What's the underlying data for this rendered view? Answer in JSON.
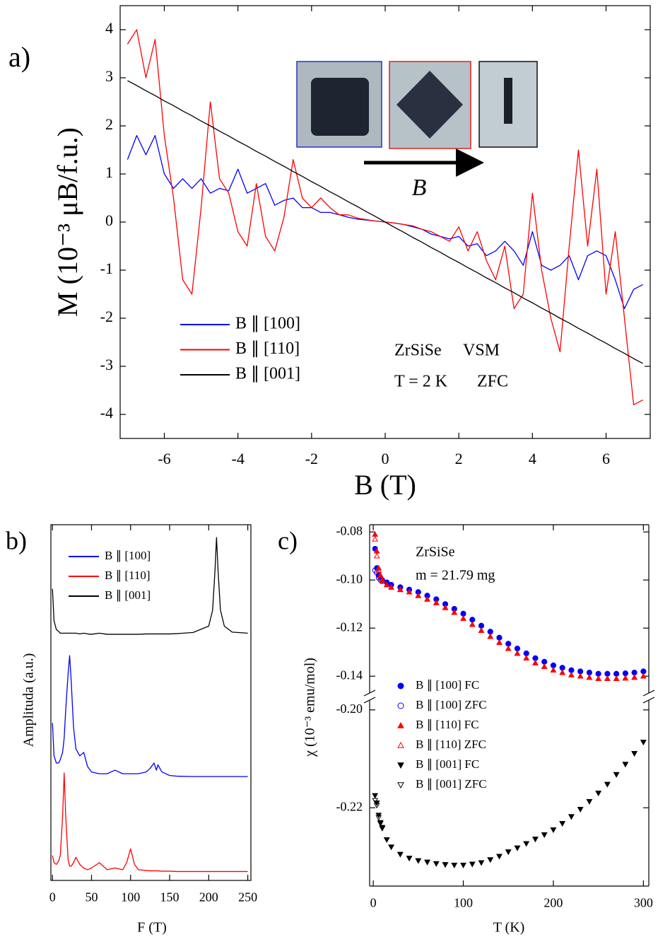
{
  "chart_data": [
    {
      "type": "line",
      "panel_label": "a)",
      "x_label": "B (T)",
      "y_label": "M (10⁻³ μB/f.u.)",
      "xlim": [
        -7.2,
        7.2
      ],
      "ylim": [
        -4.5,
        4.5
      ],
      "xticks": [
        -6,
        -4,
        -2,
        0,
        2,
        4,
        6
      ],
      "yticks": [
        -4,
        -3,
        -2,
        -1,
        0,
        1,
        2,
        3,
        4
      ],
      "annotations": [
        "ZrSiSe",
        "VSM",
        "T = 2 K",
        "ZFC",
        "B"
      ],
      "x": [
        -7,
        -6.75,
        -6.5,
        -6.25,
        -6,
        -5.75,
        -5.5,
        -5.25,
        -5,
        -4.75,
        -4.5,
        -4.25,
        -4,
        -3.75,
        -3.5,
        -3.25,
        -3,
        -2.75,
        -2.5,
        -2.25,
        -2,
        -1.75,
        -1.5,
        -1.25,
        -1,
        -0.75,
        -0.5,
        -0.25,
        0,
        0.25,
        0.5,
        0.75,
        1,
        1.25,
        1.5,
        1.75,
        2,
        2.25,
        2.5,
        2.75,
        3,
        3.25,
        3.5,
        3.75,
        4,
        4.25,
        4.5,
        4.75,
        5,
        5.25,
        5.5,
        5.75,
        6,
        6.25,
        6.5,
        6.75,
        7
      ],
      "series": [
        {
          "name": "B ∥ [100]",
          "color": "#0000ff",
          "values": [
            1.3,
            1.8,
            1.4,
            1.8,
            1.0,
            0.7,
            0.9,
            0.7,
            0.9,
            0.6,
            0.7,
            0.65,
            1.1,
            0.6,
            0.7,
            0.8,
            0.35,
            0.45,
            0.5,
            0.3,
            0.3,
            0.2,
            0.2,
            0.15,
            0.1,
            0.06,
            0.04,
            0.02,
            0,
            -0.02,
            -0.05,
            -0.1,
            -0.15,
            -0.25,
            -0.3,
            -0.35,
            -0.3,
            -0.5,
            -0.45,
            -0.7,
            -0.6,
            -0.4,
            -0.6,
            -0.9,
            -0.2,
            -0.9,
            -1.0,
            -0.9,
            -0.7,
            -1.2,
            -0.7,
            -0.6,
            -0.7,
            -1.2,
            -1.8,
            -1.4,
            -1.3
          ]
        },
        {
          "name": "B ∥ [110]",
          "color": "#ff0000",
          "values": [
            3.7,
            4.0,
            3.0,
            3.8,
            1.8,
            0.5,
            -1.2,
            -1.5,
            0.3,
            2.5,
            0.9,
            0.6,
            -0.2,
            -0.5,
            0.8,
            -0.3,
            -0.6,
            0.1,
            1.3,
            0.5,
            0.3,
            0.5,
            0.3,
            0.15,
            0.15,
            0.08,
            0.05,
            0.02,
            0,
            -0.02,
            -0.05,
            -0.08,
            -0.15,
            -0.2,
            -0.3,
            -0.4,
            -0.1,
            -0.6,
            -0.2,
            -0.8,
            -1.2,
            -0.5,
            -1.8,
            -1.5,
            0.6,
            -1.0,
            -2.0,
            -2.7,
            -0.5,
            1.5,
            -0.5,
            1.1,
            -1.5,
            -0.2,
            -2.0,
            -3.8,
            -3.7
          ]
        },
        {
          "name": "B ∥ [001]",
          "color": "#000000",
          "values": [
            2.94,
            2.84,
            2.73,
            2.63,
            2.52,
            2.42,
            2.31,
            2.21,
            2.1,
            2.0,
            1.89,
            1.79,
            1.68,
            1.58,
            1.47,
            1.37,
            1.26,
            1.16,
            1.05,
            0.95,
            0.84,
            0.74,
            0.63,
            0.53,
            0.42,
            0.32,
            0.21,
            0.11,
            0,
            -0.11,
            -0.21,
            -0.32,
            -0.42,
            -0.53,
            -0.63,
            -0.74,
            -0.84,
            -0.95,
            -1.05,
            -1.16,
            -1.26,
            -1.37,
            -1.47,
            -1.58,
            -1.68,
            -1.79,
            -1.89,
            -2.0,
            -2.1,
            -2.21,
            -2.31,
            -2.42,
            -2.52,
            -2.63,
            -2.73,
            -2.84,
            -2.94
          ]
        }
      ]
    },
    {
      "type": "line",
      "panel_label": "b)",
      "x_label": "F (T)",
      "y_label": "Amplituda (a.u.)",
      "xlim": [
        -2,
        254
      ],
      "ylim": [
        0,
        10
      ],
      "xticks": [
        0,
        50,
        100,
        150,
        200,
        250
      ],
      "x": [
        0,
        2,
        5,
        8,
        10,
        13,
        15,
        17,
        20,
        22,
        24,
        27,
        30,
        35,
        40,
        45,
        50,
        60,
        70,
        80,
        90,
        95,
        100,
        105,
        110,
        120,
        125,
        130,
        133,
        135,
        140,
        150,
        160,
        180,
        200,
        205,
        208,
        210,
        212,
        215,
        220,
        230,
        250
      ],
      "series": [
        {
          "name": "B ∥ [100]",
          "color": "#0000ff",
          "values": [
            4.43,
            3.5,
            3.3,
            3.3,
            3.4,
            3.6,
            4.0,
            4.8,
            5.8,
            6.32,
            5.6,
            4.3,
            3.7,
            3.5,
            3.6,
            3.2,
            3.05,
            3.0,
            3.0,
            3.1,
            3.0,
            3.0,
            3.0,
            3.0,
            3.0,
            3.05,
            3.15,
            3.3,
            3.1,
            3.25,
            3.05,
            2.95,
            2.93,
            2.92,
            2.92,
            2.92,
            2.92,
            2.92,
            2.92,
            2.92,
            2.92,
            2.92,
            2.92
          ]
        },
        {
          "name": "B ∥ [110]",
          "color": "#ff0000",
          "values": [
            0.7,
            0.5,
            0.45,
            0.55,
            0.7,
            1.8,
            3.02,
            1.8,
            0.6,
            0.4,
            0.4,
            0.5,
            0.65,
            0.45,
            0.35,
            0.3,
            0.35,
            0.5,
            0.3,
            0.35,
            0.3,
            0.5,
            0.89,
            0.45,
            0.3,
            0.28,
            0.27,
            0.27,
            0.27,
            0.27,
            0.26,
            0.26,
            0.25,
            0.25,
            0.25,
            0.25,
            0.25,
            0.25,
            0.25,
            0.25,
            0.25,
            0.25,
            0.25
          ]
        },
        {
          "name": "B ∥ [001]",
          "color": "#000000",
          "values": [
            8.2,
            7.3,
            7.05,
            7.0,
            6.95,
            6.95,
            6.95,
            6.95,
            6.95,
            6.95,
            6.95,
            6.95,
            6.95,
            6.93,
            6.95,
            6.93,
            6.92,
            6.95,
            6.92,
            6.92,
            6.92,
            6.92,
            6.92,
            6.92,
            6.92,
            6.93,
            6.93,
            6.93,
            6.93,
            6.93,
            6.93,
            6.93,
            6.94,
            6.97,
            7.15,
            7.6,
            8.7,
            9.64,
            8.7,
            7.6,
            7.15,
            6.98,
            6.95
          ]
        }
      ]
    },
    {
      "type": "scatter",
      "panel_label": "c)",
      "x_label": "T (K)",
      "y_label": "χ (10⁻³ emu/mol)",
      "xlim": [
        -4,
        306
      ],
      "ylim": [
        -0.147,
        -0.077
      ],
      "y2lim": [
        -0.236,
        -0.198
      ],
      "xticks": [
        0,
        100,
        200,
        300
      ],
      "yticks": [
        {
          "value": -0.08,
          "label": "-0.08"
        },
        {
          "value": -0.1,
          "label": "-0.10"
        },
        {
          "value": -0.12,
          "label": "-0.12"
        },
        {
          "value": -0.14,
          "label": "-0.14"
        }
      ],
      "y2ticks": [
        {
          "value": -0.2,
          "label": "-0.20"
        },
        {
          "value": -0.22,
          "label": "-0.22"
        }
      ],
      "annotations": [
        "ZrSiSe",
        "m = 21.79 mg"
      ],
      "x": [
        2,
        4,
        6,
        8,
        10,
        15,
        20,
        30,
        40,
        50,
        60,
        70,
        80,
        90,
        100,
        110,
        120,
        130,
        140,
        150,
        160,
        170,
        180,
        190,
        200,
        210,
        220,
        230,
        240,
        250,
        260,
        270,
        280,
        290,
        300
      ],
      "series": [
        {
          "name": "B ∥ [100] FC",
          "color": "#0000ff",
          "marker": "circle",
          "filled": true,
          "values": [
            -0.087,
            -0.095,
            -0.098,
            -0.099,
            -0.1,
            -0.101,
            -0.102,
            -0.103,
            -0.104,
            -0.105,
            -0.1065,
            -0.108,
            -0.11,
            -0.112,
            -0.114,
            -0.1165,
            -0.119,
            -0.1215,
            -0.124,
            -0.1265,
            -0.1285,
            -0.1305,
            -0.1325,
            -0.134,
            -0.1355,
            -0.1365,
            -0.1375,
            -0.138,
            -0.1385,
            -0.139,
            -0.139,
            -0.139,
            -0.1388,
            -0.1385,
            -0.138
          ]
        },
        {
          "name": "B ∥ [100] ZFC",
          "color": "#0000ff",
          "marker": "circle",
          "filled": false,
          "values": [
            -0.096,
            -0.097,
            -0.099,
            -0.1,
            -0.1005,
            -0.101,
            -0.102,
            -0.103,
            -0.104,
            -0.105,
            -0.1065,
            -0.108,
            -0.11,
            -0.112,
            -0.114,
            -0.1165,
            -0.119,
            -0.1215,
            -0.124,
            -0.1265,
            -0.1285,
            -0.1305,
            -0.1325,
            -0.134,
            -0.1355,
            -0.1365,
            -0.1375,
            -0.138,
            -0.1385,
            -0.139,
            -0.139,
            -0.139,
            -0.1388,
            -0.1385,
            -0.138
          ]
        },
        {
          "name": "B ∥ [110] FC",
          "color": "#ff0000",
          "marker": "triangle-up",
          "filled": true,
          "values": [
            -0.081,
            -0.088,
            -0.095,
            -0.098,
            -0.1,
            -0.102,
            -0.103,
            -0.104,
            -0.105,
            -0.1065,
            -0.108,
            -0.1095,
            -0.1115,
            -0.1135,
            -0.116,
            -0.1185,
            -0.121,
            -0.1235,
            -0.126,
            -0.1285,
            -0.1305,
            -0.1325,
            -0.1345,
            -0.136,
            -0.1375,
            -0.1385,
            -0.1395,
            -0.14,
            -0.1405,
            -0.141,
            -0.141,
            -0.141,
            -0.1408,
            -0.1405,
            -0.14
          ]
        },
        {
          "name": "B ∥ [110] ZFC",
          "color": "#ff0000",
          "marker": "triangle-up",
          "filled": false,
          "values": [
            -0.083,
            -0.09,
            -0.096,
            -0.099,
            -0.1005,
            -0.102,
            -0.103,
            -0.104,
            -0.105,
            -0.1065,
            -0.108,
            -0.1095,
            -0.1115,
            -0.1135,
            -0.116,
            -0.1185,
            -0.121,
            -0.1235,
            -0.126,
            -0.1285,
            -0.1305,
            -0.1325,
            -0.1345,
            -0.136,
            -0.1375,
            -0.1385,
            -0.1395,
            -0.14,
            -0.1405,
            -0.141,
            -0.141,
            -0.141,
            -0.1408,
            -0.1405,
            -0.14
          ]
        },
        {
          "name": "B ∥ [001] FC",
          "color": "#000000",
          "marker": "triangle-down",
          "filled": true,
          "axis": "y2",
          "values": [
            -0.2175,
            -0.219,
            -0.2215,
            -0.223,
            -0.224,
            -0.2265,
            -0.228,
            -0.2295,
            -0.2303,
            -0.2308,
            -0.2311,
            -0.2314,
            -0.2316,
            -0.2317,
            -0.2317,
            -0.2315,
            -0.2312,
            -0.2306,
            -0.2299,
            -0.229,
            -0.2282,
            -0.2273,
            -0.2264,
            -0.2255,
            -0.2245,
            -0.2232,
            -0.2218,
            -0.2203,
            -0.2187,
            -0.217,
            -0.2152,
            -0.2132,
            -0.2111,
            -0.2089,
            -0.2066
          ]
        },
        {
          "name": "B ∥ [001] ZFC",
          "color": "#000000",
          "marker": "triangle-down",
          "filled": false,
          "axis": "y2",
          "values": [
            -0.2185,
            -0.2195,
            -0.222,
            -0.2232,
            -0.2242,
            -0.2265,
            -0.228,
            -0.2295,
            -0.2303,
            -0.2308,
            -0.2311,
            -0.2314,
            -0.2316,
            -0.2317,
            -0.2317,
            -0.2315,
            -0.2312,
            -0.2306,
            -0.2299,
            -0.229,
            -0.2282,
            -0.2273,
            -0.2264,
            -0.2255,
            -0.2245,
            -0.2232,
            -0.2218,
            -0.2203,
            -0.2187,
            -0.217,
            -0.2152,
            -0.2132,
            -0.2111,
            -0.2089,
            -0.2066
          ]
        }
      ]
    }
  ]
}
